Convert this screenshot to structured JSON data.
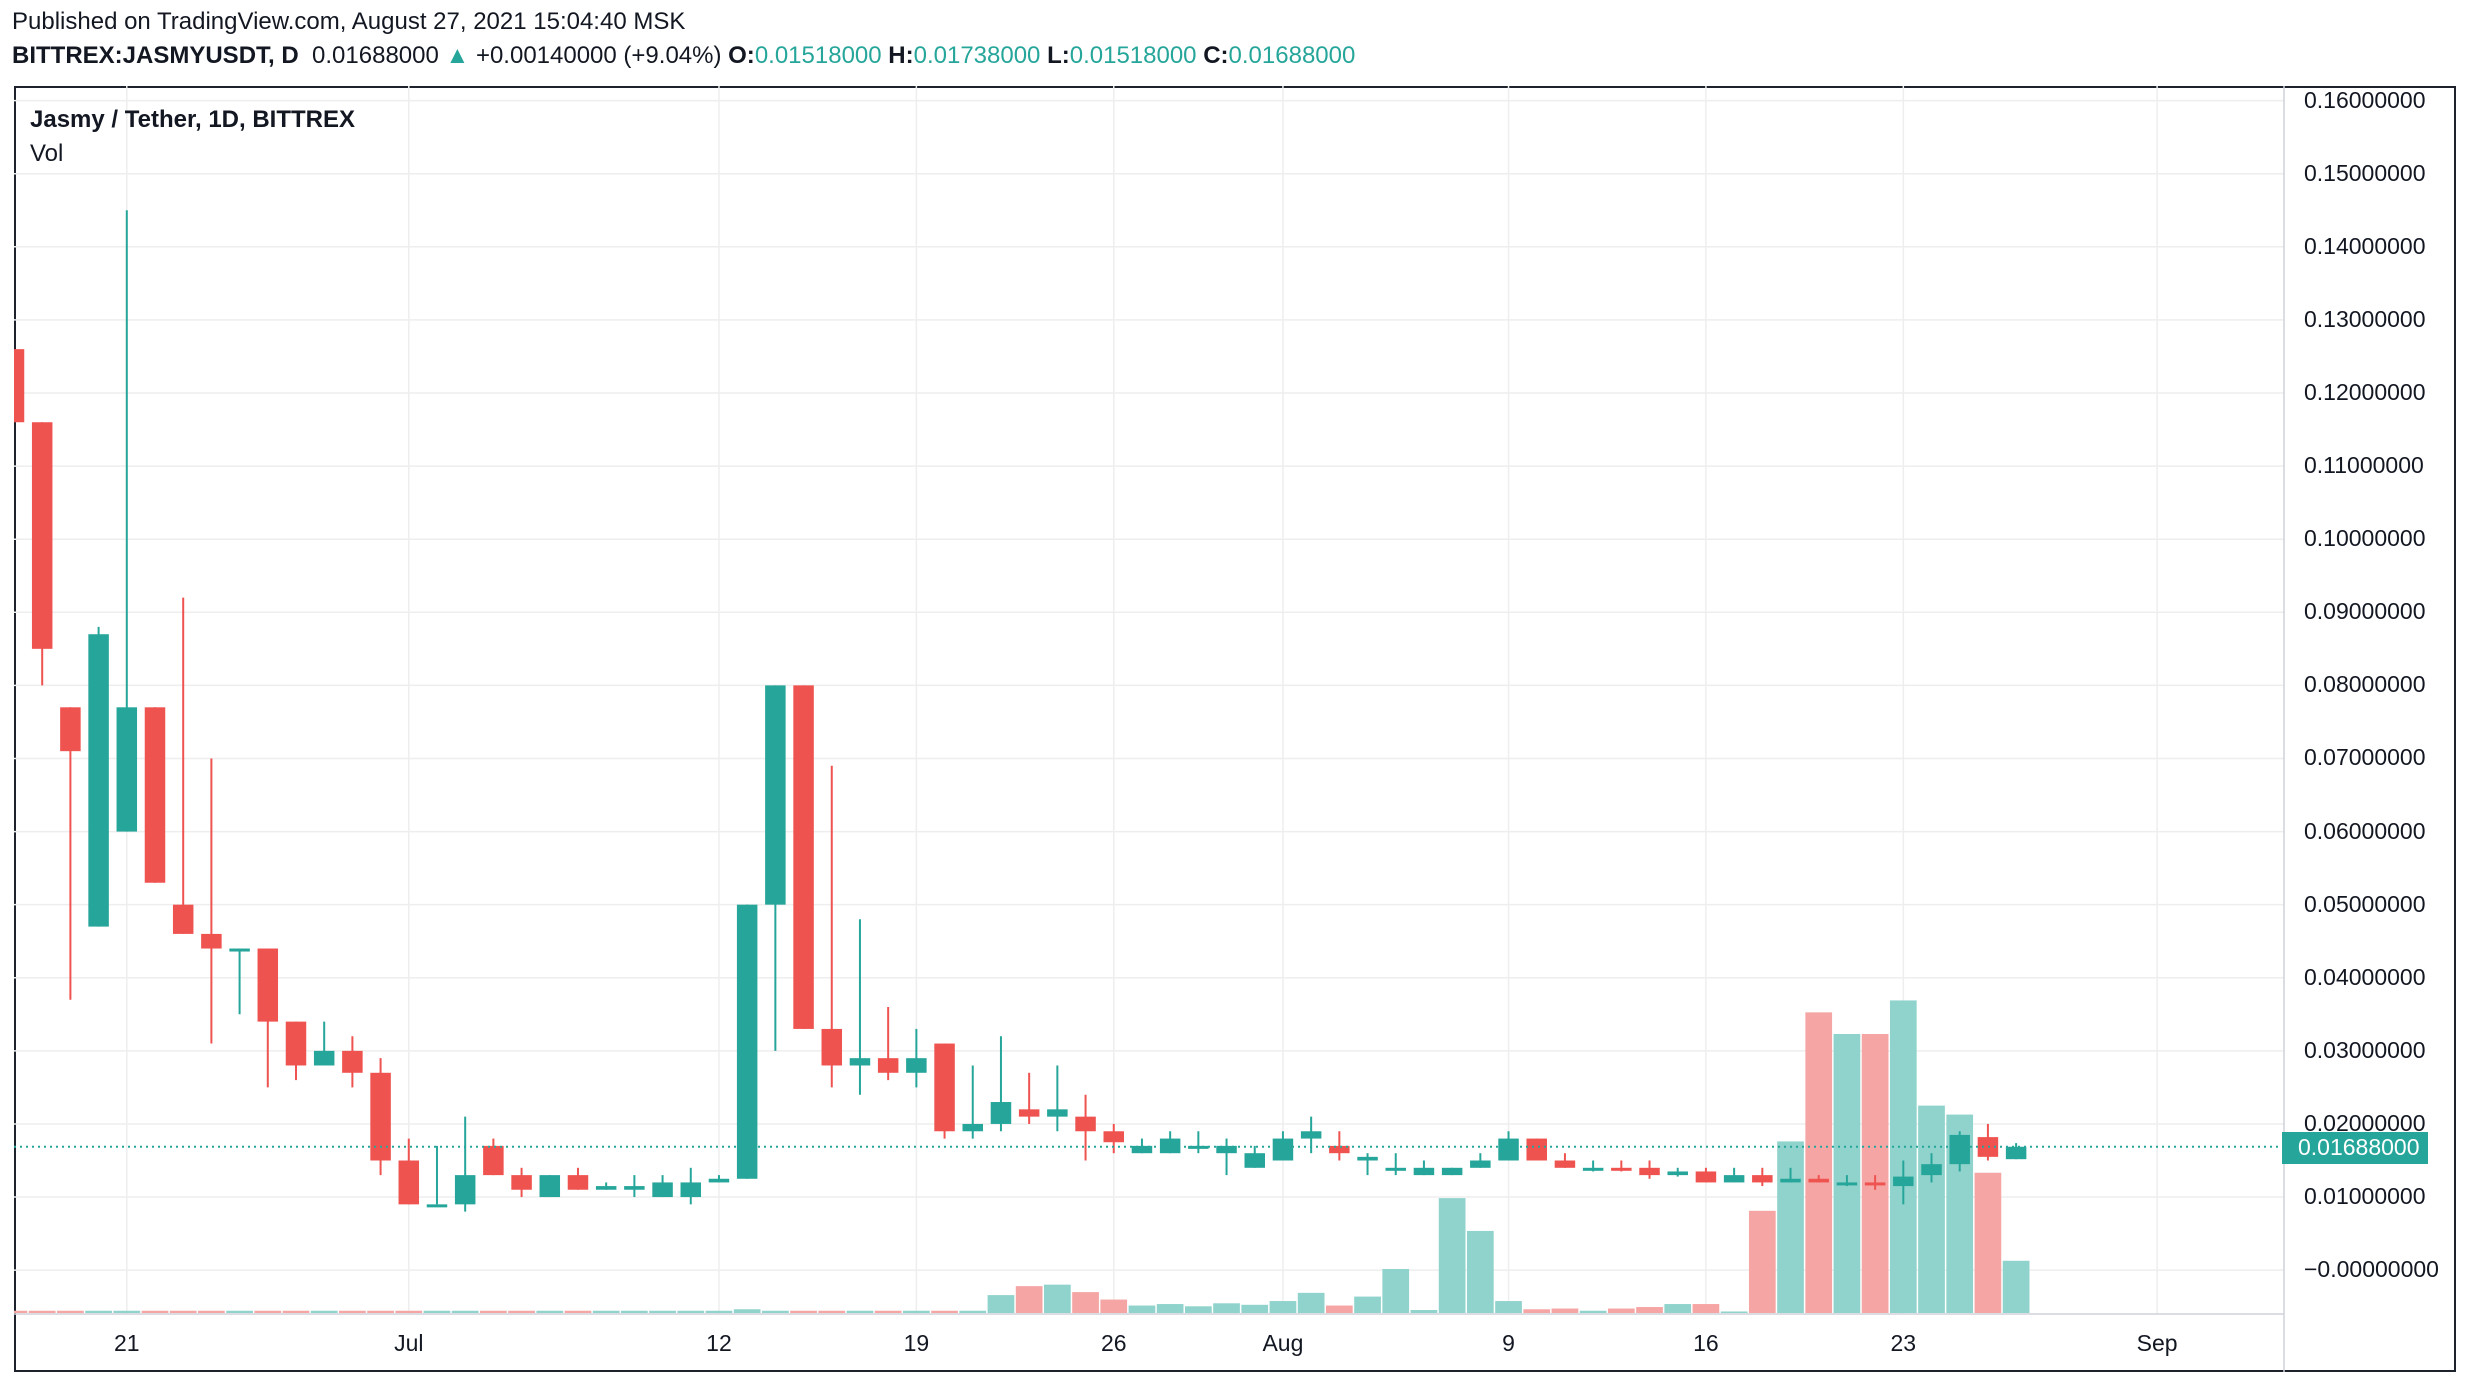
{
  "header": {
    "published": "Published on TradingView.com, August 27, 2021 15:04:40 MSK",
    "symbol": "BITTREX:JASMYUSDT, D",
    "last": "0.01688000",
    "arrow": "▲",
    "change": "+0.00140000 (+9.04%)",
    "o_label": "O:",
    "o_value": "0.01518000",
    "h_label": "H:",
    "h_value": "0.01738000",
    "l_label": "L:",
    "l_value": "0.01518000",
    "c_label": "C:",
    "c_value": "0.01688000"
  },
  "legend": {
    "title": "Jasmy / Tether, 1D, BITTREX",
    "vol": "Vol"
  },
  "last_price_badge": "0.01688000",
  "colors": {
    "up": "#26a69a",
    "down": "#ef5350",
    "vol_up": "#8fd3cc",
    "vol_down": "#f5a5a3",
    "grid": "#eeeeee"
  },
  "chart_data": {
    "type": "candlestick",
    "title": "Jasmy / Tether, 1D, BITTREX",
    "y_tick_labels": [
      "0.16000000",
      "0.15000000",
      "0.14000000",
      "0.13000000",
      "0.12000000",
      "0.11000000",
      "0.10000000",
      "0.09000000",
      "0.08000000",
      "0.07000000",
      "0.06000000",
      "0.05000000",
      "0.04000000",
      "0.03000000",
      "0.02000000",
      "0.01000000",
      "−0.00000000"
    ],
    "y_ticks": [
      0.16,
      0.15,
      0.14,
      0.13,
      0.12,
      0.11,
      0.1,
      0.09,
      0.08,
      0.07,
      0.06,
      0.05,
      0.04,
      0.03,
      0.02,
      0.01,
      0.0
    ],
    "ylim": [
      -0.006,
      0.162
    ],
    "x_tick_labels": [
      {
        "label": "21",
        "day": 0
      },
      {
        "label": "Jul",
        "day": 10
      },
      {
        "label": "12",
        "day": 21
      },
      {
        "label": "19",
        "day": 28
      },
      {
        "label": "26",
        "day": 35
      },
      {
        "label": "Aug",
        "day": 41
      },
      {
        "label": "9",
        "day": 49
      },
      {
        "label": "16",
        "day": 56
      },
      {
        "label": "23",
        "day": 63
      },
      {
        "label": "Sep",
        "day": 72
      }
    ],
    "x_range_days": [
      -4,
      76.5
    ],
    "last_price": 0.01688,
    "candles": [
      {
        "date": "2021-06-17",
        "o": 0.126,
        "h": 0.126,
        "l": 0.116,
        "c": 0.116,
        "v": 0.3
      },
      {
        "date": "2021-06-18",
        "o": 0.116,
        "h": 0.116,
        "l": 0.08,
        "c": 0.085,
        "v": 0.3
      },
      {
        "date": "2021-06-19",
        "o": 0.077,
        "h": 0.077,
        "l": 0.037,
        "c": 0.071,
        "v": 0.3
      },
      {
        "date": "2021-06-20",
        "o": 0.047,
        "h": 0.088,
        "l": 0.047,
        "c": 0.087,
        "v": 0.3
      },
      {
        "date": "2021-06-21",
        "o": 0.06,
        "h": 0.145,
        "l": 0.06,
        "c": 0.077,
        "v": 0.3
      },
      {
        "date": "2021-06-22",
        "o": 0.077,
        "h": 0.077,
        "l": 0.053,
        "c": 0.053,
        "v": 0.3
      },
      {
        "date": "2021-06-23",
        "o": 0.05,
        "h": 0.092,
        "l": 0.046,
        "c": 0.046,
        "v": 0.3
      },
      {
        "date": "2021-06-24",
        "o": 0.046,
        "h": 0.07,
        "l": 0.031,
        "c": 0.044,
        "v": 0.3
      },
      {
        "date": "2021-06-25",
        "o": 0.044,
        "h": 0.044,
        "l": 0.035,
        "c": 0.044,
        "v": 0.3
      },
      {
        "date": "2021-06-26",
        "o": 0.044,
        "h": 0.044,
        "l": 0.025,
        "c": 0.034,
        "v": 0.3
      },
      {
        "date": "2021-06-27",
        "o": 0.034,
        "h": 0.034,
        "l": 0.026,
        "c": 0.028,
        "v": 0.3
      },
      {
        "date": "2021-06-28",
        "o": 0.028,
        "h": 0.034,
        "l": 0.028,
        "c": 0.03,
        "v": 0.3
      },
      {
        "date": "2021-06-29",
        "o": 0.03,
        "h": 0.032,
        "l": 0.025,
        "c": 0.027,
        "v": 0.3
      },
      {
        "date": "2021-06-30",
        "o": 0.027,
        "h": 0.029,
        "l": 0.013,
        "c": 0.015,
        "v": 0.3
      },
      {
        "date": "2021-07-01",
        "o": 0.015,
        "h": 0.018,
        "l": 0.009,
        "c": 0.009,
        "v": 0.3
      },
      {
        "date": "2021-07-02",
        "o": 0.009,
        "h": 0.017,
        "l": 0.009,
        "c": 0.009,
        "v": 0.3
      },
      {
        "date": "2021-07-03",
        "o": 0.009,
        "h": 0.021,
        "l": 0.008,
        "c": 0.013,
        "v": 0.3
      },
      {
        "date": "2021-07-04",
        "o": 0.017,
        "h": 0.018,
        "l": 0.013,
        "c": 0.013,
        "v": 0.3
      },
      {
        "date": "2021-07-05",
        "o": 0.013,
        "h": 0.014,
        "l": 0.01,
        "c": 0.011,
        "v": 0.3
      },
      {
        "date": "2021-07-06",
        "o": 0.01,
        "h": 0.013,
        "l": 0.01,
        "c": 0.013,
        "v": 0.3
      },
      {
        "date": "2021-07-07",
        "o": 0.013,
        "h": 0.014,
        "l": 0.011,
        "c": 0.011,
        "v": 0.3
      },
      {
        "date": "2021-07-08",
        "o": 0.011,
        "h": 0.012,
        "l": 0.011,
        "c": 0.0115,
        "v": 0.3
      },
      {
        "date": "2021-07-09",
        "o": 0.011,
        "h": 0.013,
        "l": 0.01,
        "c": 0.0115,
        "v": 0.3
      },
      {
        "date": "2021-07-10",
        "o": 0.01,
        "h": 0.013,
        "l": 0.01,
        "c": 0.012,
        "v": 0.3
      },
      {
        "date": "2021-07-11",
        "o": 0.01,
        "h": 0.014,
        "l": 0.009,
        "c": 0.012,
        "v": 0.3
      },
      {
        "date": "2021-07-12",
        "o": 0.012,
        "h": 0.013,
        "l": 0.012,
        "c": 0.0125,
        "v": 0.3
      },
      {
        "date": "2021-07-13",
        "o": 0.0125,
        "h": 0.05,
        "l": 0.0125,
        "c": 0.05,
        "v": 0.5
      },
      {
        "date": "2021-07-14",
        "o": 0.05,
        "h": 0.08,
        "l": 0.03,
        "c": 0.08,
        "v": 0.3
      },
      {
        "date": "2021-07-15",
        "o": 0.08,
        "h": 0.08,
        "l": 0.033,
        "c": 0.033,
        "v": 0.3
      },
      {
        "date": "2021-07-16",
        "o": 0.033,
        "h": 0.069,
        "l": 0.025,
        "c": 0.028,
        "v": 0.3
      },
      {
        "date": "2021-07-17",
        "o": 0.028,
        "h": 0.048,
        "l": 0.024,
        "c": 0.029,
        "v": 0.3
      },
      {
        "date": "2021-07-18",
        "o": 0.029,
        "h": 0.036,
        "l": 0.026,
        "c": 0.027,
        "v": 0.3
      },
      {
        "date": "2021-07-19",
        "o": 0.027,
        "h": 0.033,
        "l": 0.025,
        "c": 0.029,
        "v": 0.3
      },
      {
        "date": "2021-07-20",
        "o": 0.031,
        "h": 0.031,
        "l": 0.018,
        "c": 0.019,
        "v": 0.3
      },
      {
        "date": "2021-07-21",
        "o": 0.019,
        "h": 0.028,
        "l": 0.018,
        "c": 0.02,
        "v": 0.3
      },
      {
        "date": "2021-07-22",
        "o": 0.02,
        "h": 0.032,
        "l": 0.019,
        "c": 0.023,
        "v": 2.4
      },
      {
        "date": "2021-07-23",
        "o": 0.022,
        "h": 0.027,
        "l": 0.02,
        "c": 0.021,
        "v": 3.6
      },
      {
        "date": "2021-07-24",
        "o": 0.021,
        "h": 0.028,
        "l": 0.019,
        "c": 0.022,
        "v": 3.8
      },
      {
        "date": "2021-07-25",
        "o": 0.021,
        "h": 0.024,
        "l": 0.015,
        "c": 0.019,
        "v": 2.8
      },
      {
        "date": "2021-07-26",
        "o": 0.019,
        "h": 0.02,
        "l": 0.016,
        "c": 0.0175,
        "v": 1.8
      },
      {
        "date": "2021-07-27",
        "o": 0.016,
        "h": 0.018,
        "l": 0.016,
        "c": 0.017,
        "v": 1.0
      },
      {
        "date": "2021-07-28",
        "o": 0.016,
        "h": 0.019,
        "l": 0.016,
        "c": 0.018,
        "v": 1.2
      },
      {
        "date": "2021-07-29",
        "o": 0.017,
        "h": 0.019,
        "l": 0.016,
        "c": 0.017,
        "v": 0.9
      },
      {
        "date": "2021-07-30",
        "o": 0.016,
        "h": 0.018,
        "l": 0.013,
        "c": 0.017,
        "v": 1.3
      },
      {
        "date": "2021-07-31",
        "o": 0.014,
        "h": 0.017,
        "l": 0.014,
        "c": 0.016,
        "v": 1.1
      },
      {
        "date": "2021-08-01",
        "o": 0.015,
        "h": 0.019,
        "l": 0.015,
        "c": 0.018,
        "v": 1.6
      },
      {
        "date": "2021-08-02",
        "o": 0.018,
        "h": 0.021,
        "l": 0.016,
        "c": 0.019,
        "v": 2.7
      },
      {
        "date": "2021-08-03",
        "o": 0.017,
        "h": 0.019,
        "l": 0.015,
        "c": 0.016,
        "v": 1.0
      },
      {
        "date": "2021-08-04",
        "o": 0.015,
        "h": 0.016,
        "l": 0.013,
        "c": 0.0155,
        "v": 2.2
      },
      {
        "date": "2021-08-05",
        "o": 0.014,
        "h": 0.016,
        "l": 0.013,
        "c": 0.014,
        "v": 5.9
      },
      {
        "date": "2021-08-06",
        "o": 0.013,
        "h": 0.015,
        "l": 0.013,
        "c": 0.014,
        "v": 0.4
      },
      {
        "date": "2021-08-07",
        "o": 0.013,
        "h": 0.014,
        "l": 0.013,
        "c": 0.014,
        "v": 15.4
      },
      {
        "date": "2021-08-08",
        "o": 0.014,
        "h": 0.016,
        "l": 0.014,
        "c": 0.015,
        "v": 11.0
      },
      {
        "date": "2021-08-09",
        "o": 0.015,
        "h": 0.019,
        "l": 0.015,
        "c": 0.018,
        "v": 1.6
      },
      {
        "date": "2021-08-10",
        "o": 0.018,
        "h": 0.018,
        "l": 0.015,
        "c": 0.015,
        "v": 0.5
      },
      {
        "date": "2021-08-11",
        "o": 0.015,
        "h": 0.016,
        "l": 0.014,
        "c": 0.014,
        "v": 0.6
      },
      {
        "date": "2021-08-12",
        "o": 0.014,
        "h": 0.015,
        "l": 0.0135,
        "c": 0.014,
        "v": 0.3
      },
      {
        "date": "2021-08-13",
        "o": 0.014,
        "h": 0.015,
        "l": 0.0135,
        "c": 0.0138,
        "v": 0.6
      },
      {
        "date": "2021-08-14",
        "o": 0.014,
        "h": 0.015,
        "l": 0.0125,
        "c": 0.013,
        "v": 0.8
      },
      {
        "date": "2021-08-15",
        "o": 0.013,
        "h": 0.014,
        "l": 0.0128,
        "c": 0.0135,
        "v": 1.2
      },
      {
        "date": "2021-08-16",
        "o": 0.0135,
        "h": 0.014,
        "l": 0.012,
        "c": 0.012,
        "v": 1.2
      },
      {
        "date": "2021-08-17",
        "o": 0.012,
        "h": 0.014,
        "l": 0.012,
        "c": 0.013,
        "v": 0.2
      },
      {
        "date": "2021-08-18",
        "o": 0.013,
        "h": 0.014,
        "l": 0.0115,
        "c": 0.012,
        "v": 13.7
      },
      {
        "date": "2021-08-19",
        "o": 0.012,
        "h": 0.014,
        "l": 0.012,
        "c": 0.0125,
        "v": 23.0
      },
      {
        "date": "2021-08-20",
        "o": 0.0125,
        "h": 0.013,
        "l": 0.012,
        "c": 0.012,
        "v": 40.3
      },
      {
        "date": "2021-08-21",
        "o": 0.012,
        "h": 0.013,
        "l": 0.0115,
        "c": 0.012,
        "v": 37.4
      },
      {
        "date": "2021-08-22",
        "o": 0.012,
        "h": 0.013,
        "l": 0.011,
        "c": 0.0118,
        "v": 37.4
      },
      {
        "date": "2021-08-23",
        "o": 0.0115,
        "h": 0.015,
        "l": 0.009,
        "c": 0.0128,
        "v": 41.9
      },
      {
        "date": "2021-08-24",
        "o": 0.013,
        "h": 0.016,
        "l": 0.012,
        "c": 0.0145,
        "v": 27.8
      },
      {
        "date": "2021-08-25",
        "o": 0.0145,
        "h": 0.019,
        "l": 0.0135,
        "c": 0.0185,
        "v": 26.6
      },
      {
        "date": "2021-08-26",
        "o": 0.0182,
        "h": 0.02,
        "l": 0.015,
        "c": 0.0155,
        "v": 18.8
      },
      {
        "date": "2021-08-27",
        "o": 0.01518,
        "h": 0.01738,
        "l": 0.01518,
        "c": 0.01688,
        "v": 7.0
      }
    ]
  }
}
